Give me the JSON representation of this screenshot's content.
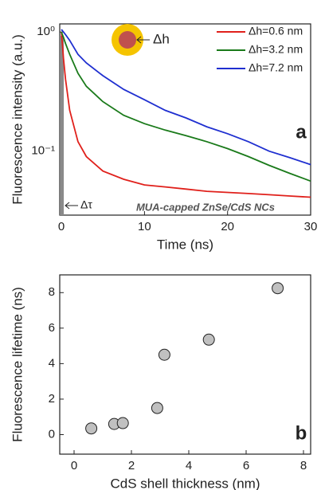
{
  "chart_data": [
    {
      "type": "line",
      "ylabel": "Fluorescence intensity (a.u.)",
      "xlabel": "Time (ns)",
      "log_y": true,
      "x": [
        0,
        0.25,
        0.5,
        1,
        2,
        3,
        5,
        7.5,
        10,
        12.5,
        15,
        17.5,
        20,
        22.5,
        25,
        27.5,
        30
      ],
      "series": [
        {
          "name": "Δh=0.6 nm",
          "color": "#e0201b",
          "values": [
            1.0,
            0.6,
            0.4,
            0.22,
            0.12,
            0.09,
            0.068,
            0.058,
            0.052,
            0.05,
            0.048,
            0.046,
            0.045,
            0.044,
            0.043,
            0.042,
            0.041
          ]
        },
        {
          "name": "Δh=3.2 nm",
          "color": "#1a7a1a",
          "values": [
            1.0,
            0.9,
            0.8,
            0.65,
            0.45,
            0.35,
            0.26,
            0.2,
            0.17,
            0.15,
            0.135,
            0.12,
            0.105,
            0.09,
            0.076,
            0.065,
            0.056
          ]
        },
        {
          "name": "Δh=7.2 nm",
          "color": "#1f2fd0",
          "values": [
            1.05,
            1.0,
            0.95,
            0.85,
            0.65,
            0.55,
            0.43,
            0.33,
            0.27,
            0.22,
            0.19,
            0.16,
            0.14,
            0.12,
            0.1,
            0.088,
            0.077
          ]
        }
      ],
      "xlim": [
        -0.2,
        30
      ],
      "xticks": [
        0,
        10,
        20,
        30
      ],
      "ylim": [
        0.029,
        1.17
      ],
      "yticks": [
        {
          "value": 1,
          "label": "10⁰"
        },
        {
          "value": 0.1,
          "label": "10⁻¹"
        }
      ],
      "annotations": {
        "panel": "a",
        "sample": "MUA-capped ZnSe/CdS NCs",
        "shell": "Δh",
        "irf": "Δτ"
      }
    },
    {
      "type": "scatter",
      "ylabel": "Fluorescence lifetime (ns)",
      "xlabel": "CdS shell thickness (nm)",
      "x": [
        0.6,
        1.4,
        1.7,
        2.9,
        3.15,
        4.7,
        7.1
      ],
      "values": [
        0.35,
        0.6,
        0.65,
        1.5,
        4.5,
        5.35,
        8.25
      ],
      "color": "#c0c0c0",
      "xlim": [
        -0.5,
        8.25
      ],
      "xticks": [
        0,
        2,
        4,
        6,
        8
      ],
      "ylim": [
        -1.1,
        9
      ],
      "yticks": [
        0,
        2,
        4,
        6,
        8
      ],
      "annotations": {
        "panel": "b"
      }
    }
  ]
}
